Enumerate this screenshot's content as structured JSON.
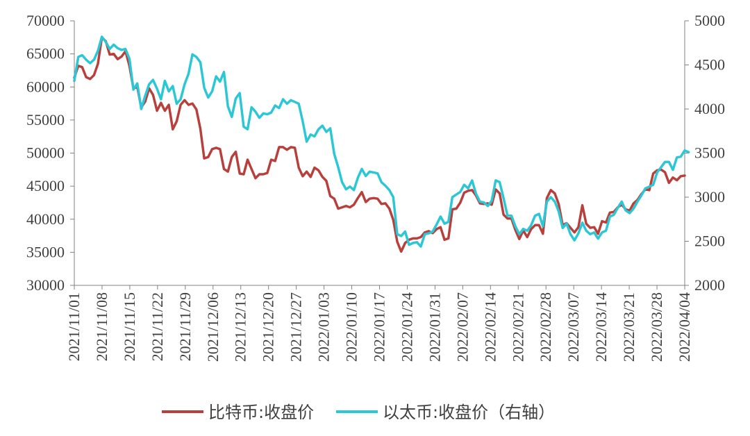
{
  "chart_data": {
    "type": "line",
    "title": "",
    "xlabel": "",
    "ylabel": "",
    "ylim": [
      30000,
      70000
    ],
    "y2lim": [
      2000,
      5000
    ],
    "y_ticks": [
      30000,
      35000,
      40000,
      45000,
      50000,
      55000,
      60000,
      65000,
      70000
    ],
    "y2_ticks": [
      2000,
      2500,
      3000,
      3500,
      4000,
      4500,
      5000
    ],
    "x_tick_labels": [
      "2021/11/01",
      "2021/11/08",
      "2021/11/15",
      "2021/11/22",
      "2021/11/29",
      "2021/12/06",
      "2021/12/13",
      "2021/12/20",
      "2021/12/27",
      "2022/01/03",
      "2022/01/10",
      "2022/01/17",
      "2022/01/24",
      "2022/01/31",
      "2022/02/07",
      "2022/02/14",
      "2022/02/21",
      "2022/02/28",
      "2022/03/07",
      "2022/03/14",
      "2022/03/21",
      "2022/03/28",
      "2022/04/04"
    ],
    "grid": false,
    "legend_position": "bottom",
    "series": [
      {
        "name": "比特币:收盘价",
        "axis": "left",
        "color": "#b7403c",
        "values": [
          61400,
          63200,
          63000,
          61500,
          61200,
          61800,
          63500,
          67500,
          66900,
          64900,
          65000,
          64200,
          64600,
          65400,
          63200,
          59800,
          60000,
          56900,
          57800,
          59800,
          58800,
          56400,
          57600,
          56400,
          57300,
          53600,
          54800,
          57300,
          58000,
          57300,
          57500,
          56600,
          53700,
          49200,
          49400,
          50600,
          50800,
          50600,
          47600,
          47200,
          49400,
          50200,
          46900,
          46800,
          49000,
          47600,
          46200,
          46800,
          46800,
          47000,
          49000,
          48800,
          50900,
          50900,
          50500,
          50900,
          50800,
          47800,
          46500,
          47200,
          46400,
          47800,
          47400,
          46400,
          45800,
          43500,
          43100,
          41600,
          41800,
          42000,
          41800,
          42200,
          43200,
          44100,
          42600,
          43100,
          43200,
          43100,
          42300,
          42400,
          41600,
          39900,
          36600,
          35100,
          36400,
          36900,
          37100,
          37100,
          37300,
          38000,
          38200,
          37900,
          38500,
          38800,
          36900,
          37100,
          41500,
          41600,
          42500,
          44000,
          44300,
          44400,
          43600,
          42400,
          42300,
          42400,
          42200,
          44500,
          43900,
          40700,
          40100,
          40100,
          38400,
          37000,
          38300,
          37300,
          38500,
          39100,
          39100,
          37800,
          43200,
          44400,
          43900,
          42300,
          39100,
          39400,
          38700,
          38000,
          38800,
          42100,
          39300,
          38700,
          38800,
          37800,
          39700,
          39500,
          41000,
          41100,
          41800,
          42200,
          41500,
          41300,
          42400,
          42900,
          43800,
          44500,
          44400,
          46900,
          47400,
          47500,
          47100,
          45500,
          46300,
          45900,
          46500,
          46600
        ]
      },
      {
        "name": "以太币:收盘价（右轴）",
        "axis": "right",
        "color": "#2cc7d4",
        "values": [
          4320,
          4590,
          4610,
          4560,
          4520,
          4560,
          4660,
          4820,
          4760,
          4680,
          4730,
          4690,
          4670,
          4680,
          4570,
          4220,
          4290,
          4000,
          4150,
          4280,
          4330,
          4230,
          4110,
          4320,
          4200,
          4260,
          4060,
          4110,
          4280,
          4400,
          4620,
          4590,
          4530,
          4240,
          4130,
          4200,
          4370,
          4310,
          4420,
          4030,
          3910,
          4120,
          4180,
          3800,
          3770,
          4020,
          3970,
          3900,
          3950,
          3940,
          3960,
          4040,
          4010,
          4110,
          4060,
          4100,
          4080,
          4060,
          3860,
          3630,
          3710,
          3690,
          3770,
          3810,
          3740,
          3780,
          3490,
          3340,
          3170,
          3090,
          3120,
          3080,
          3220,
          3320,
          3240,
          3290,
          3280,
          3270,
          3170,
          3130,
          3080,
          3000,
          2580,
          2560,
          2610,
          2460,
          2480,
          2490,
          2440,
          2580,
          2590,
          2610,
          2690,
          2780,
          2700,
          2720,
          3000,
          3030,
          3060,
          3140,
          3100,
          3190,
          3040,
          2950,
          2940,
          2900,
          2960,
          3190,
          3170,
          2990,
          2790,
          2790,
          2670,
          2580,
          2640,
          2620,
          2680,
          2790,
          2810,
          2670,
          2950,
          3000,
          2950,
          2840,
          2650,
          2700,
          2580,
          2510,
          2590,
          2710,
          2620,
          2580,
          2600,
          2530,
          2600,
          2620,
          2780,
          2800,
          2880,
          2950,
          2850,
          2820,
          2870,
          2950,
          3020,
          3100,
          3120,
          3140,
          3280,
          3340,
          3400,
          3400,
          3310,
          3450,
          3460,
          3530,
          3510
        ]
      }
    ]
  }
}
